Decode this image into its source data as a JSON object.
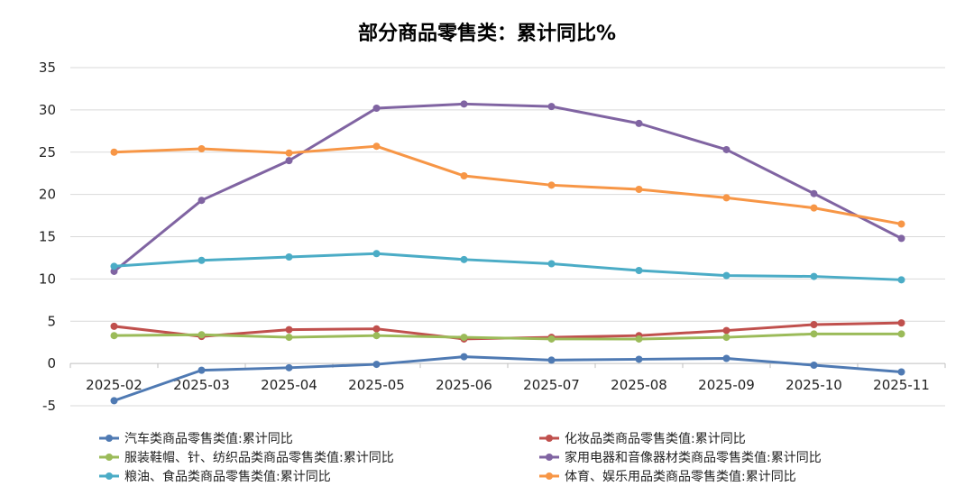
{
  "chart_data": {
    "type": "line",
    "title": "部分商品零售类：累计同比%",
    "xlabel": "",
    "ylabel": "",
    "categories": [
      "2025-02",
      "2025-03",
      "2025-04",
      "2025-05",
      "2025-06",
      "2025-07",
      "2025-08",
      "2025-09",
      "2025-10",
      "2025-11"
    ],
    "ylim": [
      -5,
      35
    ],
    "yticks": [
      -5,
      0,
      5,
      10,
      15,
      20,
      25,
      30,
      35
    ],
    "grid": true,
    "legend_position": "bottom",
    "series": [
      {
        "name": "汽车类商品零售类值:累计同比",
        "color": "#4f7ab3",
        "values": [
          -4.4,
          -0.8,
          -0.5,
          -0.1,
          0.8,
          0.4,
          0.5,
          0.6,
          -0.2,
          -1.0
        ]
      },
      {
        "name": "化妆品类商品零售类值:累计同比",
        "color": "#c0504d",
        "values": [
          4.4,
          3.2,
          4.0,
          4.1,
          2.9,
          3.1,
          3.3,
          3.9,
          4.6,
          4.8
        ]
      },
      {
        "name": "服装鞋帽、针、纺织品类商品零售类值:累计同比",
        "color": "#9bbb59",
        "values": [
          3.3,
          3.4,
          3.1,
          3.3,
          3.1,
          2.9,
          2.9,
          3.1,
          3.5,
          3.5
        ]
      },
      {
        "name": "家用电器和音像器材类商品零售类值:累计同比",
        "color": "#8064a2",
        "values": [
          10.9,
          19.3,
          24.0,
          30.2,
          30.7,
          30.4,
          28.4,
          25.3,
          20.1,
          14.8
        ]
      },
      {
        "name": "粮油、食品类商品零售类值:累计同比",
        "color": "#4bacc6",
        "values": [
          11.5,
          12.2,
          12.6,
          13.0,
          12.3,
          11.8,
          11.0,
          10.4,
          10.3,
          9.9
        ]
      },
      {
        "name": "体育、娱乐用品类商品零售类值:累计同比",
        "color": "#f79646",
        "values": [
          25.0,
          25.4,
          24.9,
          25.7,
          22.2,
          21.1,
          20.6,
          19.6,
          18.4,
          16.5
        ]
      }
    ]
  }
}
